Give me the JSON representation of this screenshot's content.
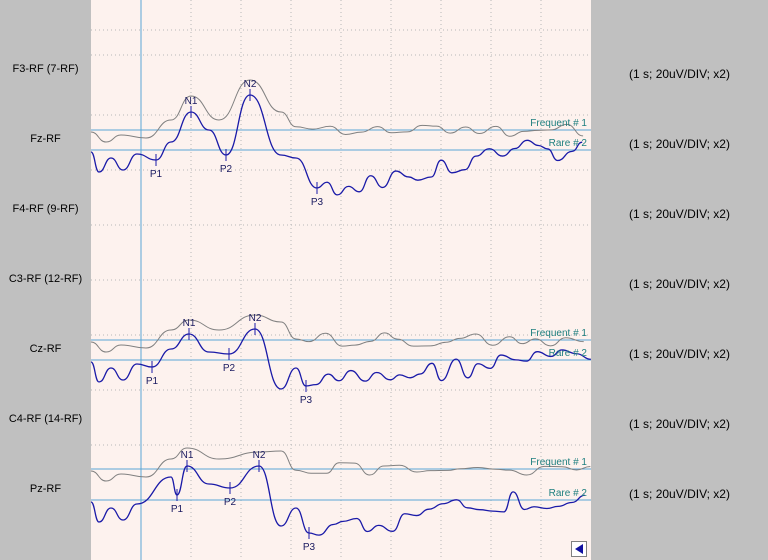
{
  "channels": [
    {
      "label": "F3-RF (7-RF)",
      "scale": "(1 s; 20uV/DIV; x2)"
    },
    {
      "label": "Fz-RF",
      "scale": "(1 s; 20uV/DIV; x2)"
    },
    {
      "label": "F4-RF (9-RF)",
      "scale": "(1 s; 20uV/DIV; x2)"
    },
    {
      "label": "C3-RF (12-RF)",
      "scale": "(1 s; 20uV/DIV; x2)"
    },
    {
      "label": "Cz-RF",
      "scale": "(1 s; 20uV/DIV; x2)"
    },
    {
      "label": "C4-RF (14-RF)",
      "scale": "(1 s; 20uV/DIV; x2)"
    },
    {
      "label": "Pz-RF",
      "scale": "(1 s; 20uV/DIV; x2)"
    }
  ],
  "colors": {
    "frequent": "#808080",
    "rare": "#1a1aa8",
    "baseline": "#5aa6d6",
    "trace_label": "#1e7f7f",
    "grid": "#b8b8b8",
    "background": "#fdf2ee"
  },
  "icons": {
    "nav_button": "left-arrow-icon"
  },
  "chart_data": [
    {
      "type": "line",
      "channel": "Fz-RF",
      "series": [
        {
          "name": "Frequent # 1"
        },
        {
          "name": "Rare # 2"
        }
      ],
      "peaks": [
        {
          "label": "P1",
          "polarity": "positive"
        },
        {
          "label": "N1",
          "polarity": "negative"
        },
        {
          "label": "P2",
          "polarity": "positive"
        },
        {
          "label": "N2",
          "polarity": "negative"
        },
        {
          "label": "P3",
          "polarity": "positive"
        }
      ]
    },
    {
      "type": "line",
      "channel": "Cz-RF",
      "series": [
        {
          "name": "Frequent # 1"
        },
        {
          "name": "Rare # 2"
        }
      ],
      "peaks": [
        {
          "label": "P1",
          "polarity": "positive"
        },
        {
          "label": "N1",
          "polarity": "negative"
        },
        {
          "label": "P2",
          "polarity": "positive"
        },
        {
          "label": "N2",
          "polarity": "negative"
        },
        {
          "label": "P3",
          "polarity": "positive"
        }
      ]
    },
    {
      "type": "line",
      "channel": "Pz-RF",
      "series": [
        {
          "name": "Frequent # 1"
        },
        {
          "name": "Rare # 2"
        }
      ],
      "peaks": [
        {
          "label": "P1",
          "polarity": "positive"
        },
        {
          "label": "N1",
          "polarity": "negative"
        },
        {
          "label": "P2",
          "polarity": "positive"
        },
        {
          "label": "N2",
          "polarity": "negative"
        },
        {
          "label": "P3",
          "polarity": "positive"
        }
      ]
    }
  ]
}
